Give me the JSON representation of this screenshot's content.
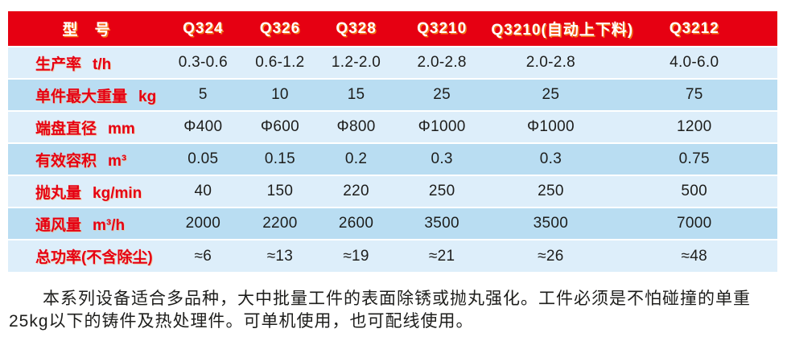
{
  "colors": {
    "header_red": "#e60012",
    "row_light": "#ddeefa",
    "row_dark": "#b9ddf2",
    "separator": "#ffffff",
    "header_text": "#ffffff",
    "label_text": "#e60012",
    "value_text": "#1d1d1b"
  },
  "table": {
    "header": {
      "label": "型　号",
      "models": [
        "Q324",
        "Q326",
        "Q328",
        "Q3210",
        "Q3210(自动上下料)",
        "Q3212"
      ]
    },
    "rows": [
      {
        "label": "生产率",
        "unit": "t/h",
        "values": [
          "0.3-0.6",
          "0.6-1.2",
          "1.2-2.0",
          "2.0-2.8",
          "2.0-2.8",
          "4.0-6.0"
        ]
      },
      {
        "label": "单件最大重量",
        "unit": "kg",
        "values": [
          "5",
          "10",
          "15",
          "25",
          "25",
          "75"
        ]
      },
      {
        "label": "端盘直径",
        "unit": "mm",
        "values": [
          "Φ400",
          "Φ600",
          "Φ800",
          "Φ1000",
          "Φ1000",
          "1200"
        ]
      },
      {
        "label": "有效容积",
        "unit": "m³",
        "values": [
          "0.05",
          "0.15",
          "0.2",
          "0.3",
          "0.3",
          "0.75"
        ]
      },
      {
        "label": "抛丸量",
        "unit": "kg/min",
        "values": [
          "40",
          "150",
          "220",
          "250",
          "250",
          "500"
        ]
      },
      {
        "label": "通风量",
        "unit": "m³/h",
        "values": [
          "2000",
          "2200",
          "2600",
          "3500",
          "3500",
          "7000"
        ]
      },
      {
        "label": "总功率(不含除尘)",
        "unit": "",
        "values": [
          "≈6",
          "≈13",
          "≈19",
          "≈21",
          "≈26",
          "≈48"
        ]
      }
    ]
  },
  "description": {
    "lines": [
      "本系列设备适合多品种，大中批量工件的表面除锈或抛丸强化。工件必须是不怕碰撞的单重",
      "25kg以下的铸件及热处理件。可单机使用，也可配线使用。"
    ]
  }
}
